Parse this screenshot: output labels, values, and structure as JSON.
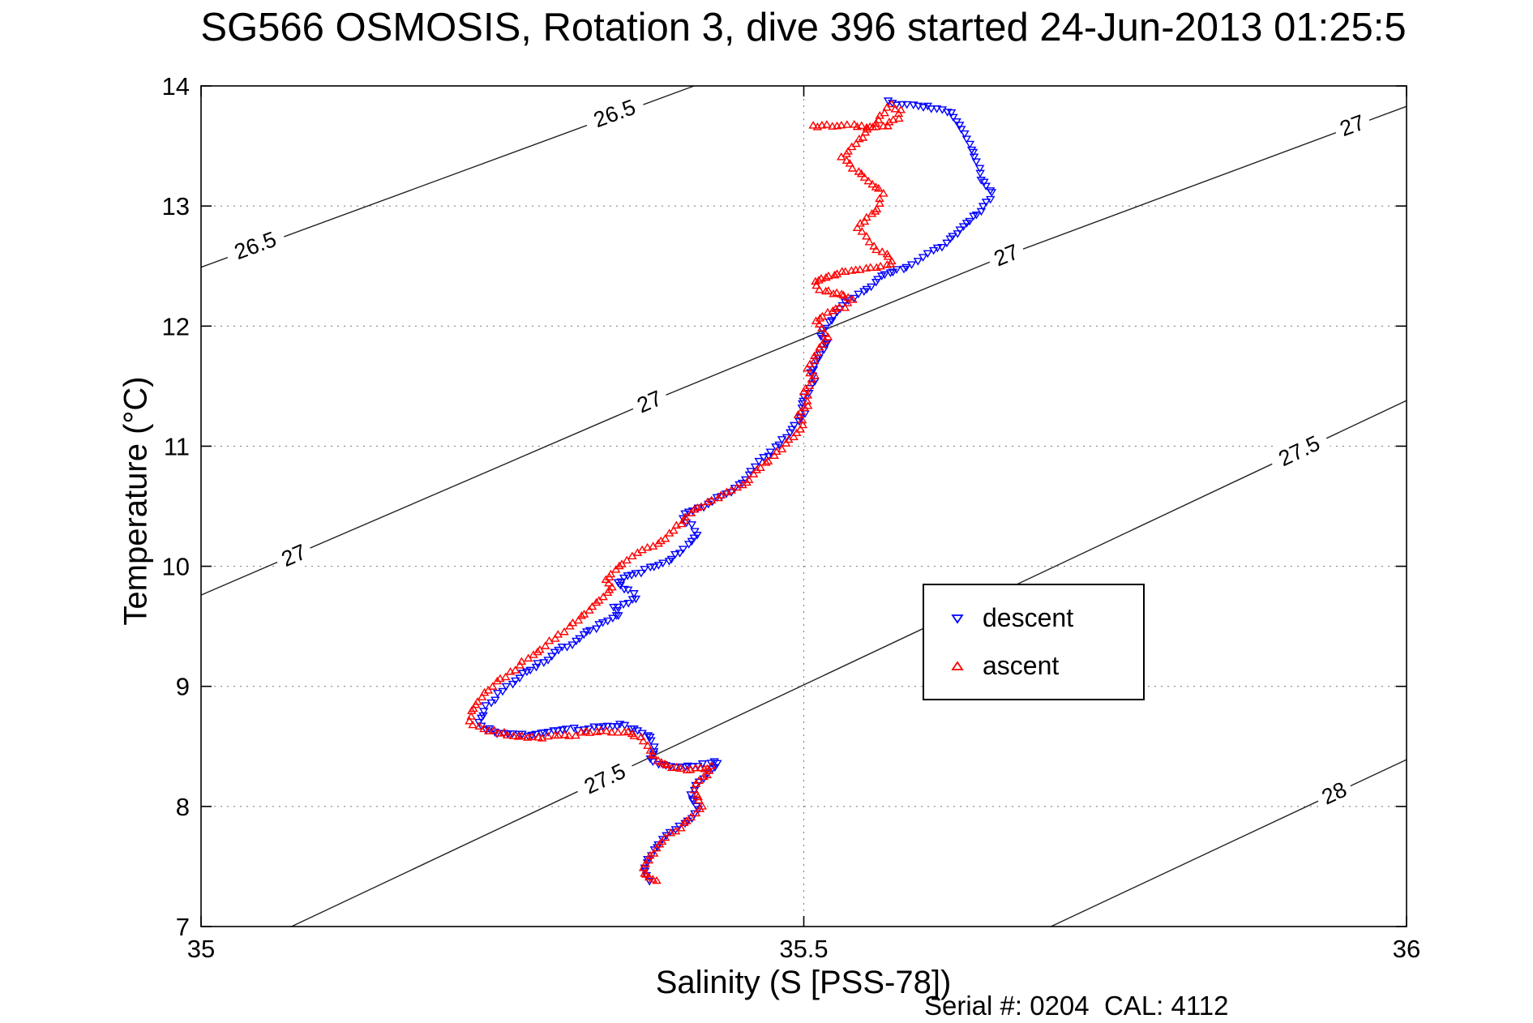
{
  "footer": "Serial #: 0204  CAL: 4112",
  "chart_data": {
    "type": "scatter",
    "title": "SG566 OSMOSIS, Rotation 3, dive 396 started 24-Jun-2013 01:25:5",
    "xlabel": "Salinity (S [PSS-78])",
    "ylabel": "Temperature (°C)",
    "xlim": [
      35,
      36
    ],
    "ylim": [
      7,
      14
    ],
    "xticks": [
      35,
      35.5,
      36
    ],
    "xtick_labels": [
      "35",
      "35.5",
      "36"
    ],
    "yticks": [
      7,
      8,
      9,
      10,
      11,
      12,
      13,
      14
    ],
    "ytick_labels": [
      "7",
      "8",
      "9",
      "10",
      "11",
      "12",
      "13",
      "14"
    ],
    "grid": {
      "x": [
        35.5
      ],
      "y": [
        8,
        9,
        10,
        11,
        12,
        13
      ],
      "style": "dotted"
    },
    "legend_position": "middle-right",
    "contours": [
      {
        "level": "26.5",
        "points": [
          [
            35.0,
            12.49
          ],
          [
            35.409,
            14.0
          ]
        ],
        "labels": [
          {
            "x": 35.045,
            "y": 12.67
          },
          {
            "x": 35.343,
            "y": 13.77
          }
        ]
      },
      {
        "level": "27",
        "points": [
          [
            35.0,
            9.76
          ],
          [
            35.372,
            11.37
          ],
          [
            35.668,
            12.59
          ],
          [
            36.0,
            13.83
          ]
        ],
        "labels": [
          {
            "x": 35.077,
            "y": 10.09
          },
          {
            "x": 35.372,
            "y": 11.37
          },
          {
            "x": 35.668,
            "y": 12.59
          },
          {
            "x": 35.955,
            "y": 13.67
          }
        ]
      },
      {
        "level": "27.5",
        "points": [
          [
            35.075,
            7.0
          ],
          [
            36.0,
            11.38
          ]
        ],
        "labels": [
          {
            "x": 35.335,
            "y": 8.23
          },
          {
            "x": 35.911,
            "y": 10.96
          }
        ]
      },
      {
        "level": "28",
        "points": [
          [
            35.705,
            7.0
          ],
          [
            36.0,
            8.39
          ]
        ],
        "labels": [
          {
            "x": 35.94,
            "y": 8.11
          }
        ]
      }
    ],
    "series": [
      {
        "name": "descent",
        "marker": "triangle-down",
        "color": "#0000FF",
        "points": [
          [
            35.569,
            13.89
          ],
          [
            35.578,
            13.85
          ],
          [
            35.598,
            13.83
          ],
          [
            35.623,
            13.79
          ],
          [
            35.635,
            13.56
          ],
          [
            35.639,
            13.48
          ],
          [
            35.644,
            13.36
          ],
          [
            35.648,
            13.23
          ],
          [
            35.656,
            13.11
          ],
          [
            35.652,
            13.03
          ],
          [
            35.644,
            12.94
          ],
          [
            35.635,
            12.86
          ],
          [
            35.627,
            12.78
          ],
          [
            35.619,
            12.69
          ],
          [
            35.611,
            12.65
          ],
          [
            35.602,
            12.61
          ],
          [
            35.594,
            12.55
          ],
          [
            35.586,
            12.5
          ],
          [
            35.578,
            12.47
          ],
          [
            35.565,
            12.41
          ],
          [
            35.557,
            12.34
          ],
          [
            35.549,
            12.28
          ],
          [
            35.541,
            12.24
          ],
          [
            35.532,
            12.17
          ],
          [
            35.528,
            12.12
          ],
          [
            35.523,
            12.06
          ],
          [
            35.518,
            11.99
          ],
          [
            35.514,
            11.93
          ],
          [
            35.52,
            11.87
          ],
          [
            35.516,
            11.81
          ],
          [
            35.512,
            11.74
          ],
          [
            35.508,
            11.68
          ],
          [
            35.506,
            11.61
          ],
          [
            35.509,
            11.55
          ],
          [
            35.506,
            11.48
          ],
          [
            35.501,
            11.41
          ],
          [
            35.498,
            11.35
          ],
          [
            35.5,
            11.28
          ],
          [
            35.495,
            11.22
          ],
          [
            35.491,
            11.15
          ],
          [
            35.485,
            11.08
          ],
          [
            35.479,
            11.02
          ],
          [
            35.473,
            10.96
          ],
          [
            35.467,
            10.9
          ],
          [
            35.46,
            10.84
          ],
          [
            35.454,
            10.77
          ],
          [
            35.45,
            10.7
          ],
          [
            35.444,
            10.65
          ],
          [
            35.436,
            10.61
          ],
          [
            35.429,
            10.57
          ],
          [
            35.421,
            10.52
          ],
          [
            35.412,
            10.49
          ],
          [
            35.404,
            10.46
          ],
          [
            35.399,
            10.41
          ],
          [
            35.406,
            10.34
          ],
          [
            35.411,
            10.27
          ],
          [
            35.407,
            10.21
          ],
          [
            35.401,
            10.15
          ],
          [
            35.394,
            10.09
          ],
          [
            35.384,
            10.04
          ],
          [
            35.373,
            9.99
          ],
          [
            35.361,
            9.94
          ],
          [
            35.351,
            9.9
          ],
          [
            35.345,
            9.86
          ],
          [
            35.355,
            9.8
          ],
          [
            35.361,
            9.74
          ],
          [
            35.351,
            9.69
          ],
          [
            35.342,
            9.65
          ],
          [
            35.347,
            9.6
          ],
          [
            35.337,
            9.55
          ],
          [
            35.327,
            9.49
          ],
          [
            35.317,
            9.43
          ],
          [
            35.307,
            9.36
          ],
          [
            35.297,
            9.3
          ],
          [
            35.287,
            9.23
          ],
          [
            35.277,
            9.17
          ],
          [
            35.267,
            9.1
          ],
          [
            35.258,
            9.03
          ],
          [
            35.25,
            8.97
          ],
          [
            35.243,
            8.9
          ],
          [
            35.237,
            8.84
          ],
          [
            35.233,
            8.77
          ],
          [
            35.231,
            8.7
          ],
          [
            35.236,
            8.65
          ],
          [
            35.246,
            8.62
          ],
          [
            35.259,
            8.6
          ],
          [
            35.274,
            8.6
          ],
          [
            35.289,
            8.62
          ],
          [
            35.304,
            8.64
          ],
          [
            35.318,
            8.65
          ],
          [
            35.333,
            8.67
          ],
          [
            35.348,
            8.68
          ],
          [
            35.36,
            8.65
          ],
          [
            35.37,
            8.6
          ],
          [
            35.374,
            8.54
          ],
          [
            35.376,
            8.47
          ],
          [
            35.373,
            8.41
          ],
          [
            35.379,
            8.36
          ],
          [
            35.389,
            8.34
          ],
          [
            35.401,
            8.34
          ],
          [
            35.412,
            8.35
          ],
          [
            35.422,
            8.36
          ],
          [
            35.429,
            8.37
          ],
          [
            35.424,
            8.31
          ],
          [
            35.417,
            8.24
          ],
          [
            35.411,
            8.17
          ],
          [
            35.406,
            8.11
          ],
          [
            35.409,
            8.04
          ],
          [
            35.412,
            7.98
          ],
          [
            35.407,
            7.91
          ],
          [
            35.401,
            7.86
          ],
          [
            35.393,
            7.81
          ],
          [
            35.386,
            7.75
          ],
          [
            35.38,
            7.69
          ],
          [
            35.375,
            7.63
          ],
          [
            35.371,
            7.56
          ],
          [
            35.368,
            7.5
          ],
          [
            35.369,
            7.43
          ],
          [
            35.372,
            7.38
          ]
        ]
      },
      {
        "name": "ascent",
        "marker": "triangle-up",
        "color": "#FF0000",
        "points": [
          [
            35.508,
            13.66
          ],
          [
            35.52,
            13.67
          ],
          [
            35.532,
            13.66
          ],
          [
            35.545,
            13.67
          ],
          [
            35.557,
            13.66
          ],
          [
            35.569,
            13.67
          ],
          [
            35.578,
            13.73
          ],
          [
            35.58,
            13.79
          ],
          [
            35.572,
            13.84
          ],
          [
            35.532,
            13.4
          ],
          [
            35.557,
            13.19
          ],
          [
            35.565,
            13.11
          ],
          [
            35.561,
            12.98
          ],
          [
            35.553,
            12.9
          ],
          [
            35.545,
            12.82
          ],
          [
            35.551,
            12.74
          ],
          [
            35.557,
            12.67
          ],
          [
            35.565,
            12.61
          ],
          [
            35.574,
            12.55
          ],
          [
            35.569,
            12.5
          ],
          [
            35.539,
            12.47
          ],
          [
            35.528,
            12.44
          ],
          [
            35.518,
            12.41
          ],
          [
            35.509,
            12.36
          ],
          [
            35.514,
            12.31
          ],
          [
            35.524,
            12.27
          ],
          [
            35.534,
            12.25
          ],
          [
            35.541,
            12.21
          ],
          [
            35.534,
            12.16
          ],
          [
            35.524,
            12.12
          ],
          [
            35.516,
            12.09
          ],
          [
            35.511,
            12.03
          ],
          [
            35.516,
            11.98
          ],
          [
            35.521,
            11.91
          ],
          [
            35.516,
            11.84
          ],
          [
            35.511,
            11.78
          ],
          [
            35.508,
            11.71
          ],
          [
            35.504,
            11.65
          ],
          [
            35.508,
            11.58
          ],
          [
            35.504,
            11.51
          ],
          [
            35.501,
            11.45
          ],
          [
            35.504,
            11.38
          ],
          [
            35.501,
            11.31
          ],
          [
            35.496,
            11.25
          ],
          [
            35.5,
            11.18
          ],
          [
            35.495,
            11.12
          ],
          [
            35.488,
            11.05
          ],
          [
            35.481,
            10.98
          ],
          [
            35.475,
            10.92
          ],
          [
            35.468,
            10.85
          ],
          [
            35.462,
            10.79
          ],
          [
            35.455,
            10.72
          ],
          [
            35.449,
            10.67
          ],
          [
            35.44,
            10.63
          ],
          [
            35.432,
            10.59
          ],
          [
            35.424,
            10.55
          ],
          [
            35.416,
            10.5
          ],
          [
            35.409,
            10.46
          ],
          [
            35.402,
            10.41
          ],
          [
            35.398,
            10.36
          ],
          [
            35.393,
            10.3
          ],
          [
            35.386,
            10.24
          ],
          [
            35.379,
            10.19
          ],
          [
            35.37,
            10.15
          ],
          [
            35.362,
            10.1
          ],
          [
            35.354,
            10.05
          ],
          [
            35.346,
            10.0
          ],
          [
            35.34,
            9.94
          ],
          [
            35.335,
            9.88
          ],
          [
            35.342,
            9.83
          ],
          [
            35.337,
            9.78
          ],
          [
            35.331,
            9.72
          ],
          [
            35.325,
            9.66
          ],
          [
            35.318,
            9.6
          ],
          [
            35.312,
            9.55
          ],
          [
            35.305,
            9.49
          ],
          [
            35.297,
            9.43
          ],
          [
            35.29,
            9.37
          ],
          [
            35.282,
            9.31
          ],
          [
            35.275,
            9.26
          ],
          [
            35.267,
            9.2
          ],
          [
            35.26,
            9.14
          ],
          [
            35.253,
            9.08
          ],
          [
            35.245,
            9.03
          ],
          [
            35.239,
            8.97
          ],
          [
            35.233,
            8.91
          ],
          [
            35.228,
            8.85
          ],
          [
            35.225,
            8.79
          ],
          [
            35.223,
            8.72
          ],
          [
            35.226,
            8.67
          ],
          [
            35.235,
            8.64
          ],
          [
            35.258,
            8.59
          ],
          [
            35.271,
            8.57
          ],
          [
            35.284,
            8.57
          ],
          [
            35.297,
            8.59
          ],
          [
            35.31,
            8.6
          ],
          [
            35.323,
            8.62
          ],
          [
            35.337,
            8.63
          ],
          [
            35.35,
            8.62
          ],
          [
            35.36,
            8.59
          ],
          [
            35.368,
            8.54
          ],
          [
            35.373,
            8.47
          ],
          [
            35.376,
            8.41
          ],
          [
            35.381,
            8.36
          ],
          [
            35.391,
            8.32
          ],
          [
            35.402,
            8.31
          ],
          [
            35.414,
            8.31
          ],
          [
            35.424,
            8.33
          ],
          [
            35.421,
            8.27
          ],
          [
            35.414,
            8.21
          ],
          [
            35.409,
            8.14
          ],
          [
            35.412,
            8.07
          ],
          [
            35.416,
            8.01
          ],
          [
            35.411,
            7.94
          ],
          [
            35.404,
            7.88
          ],
          [
            35.397,
            7.83
          ],
          [
            35.389,
            7.77
          ],
          [
            35.383,
            7.71
          ],
          [
            35.377,
            7.65
          ],
          [
            35.373,
            7.58
          ],
          [
            35.369,
            7.51
          ],
          [
            35.367,
            7.45
          ],
          [
            35.372,
            7.4
          ],
          [
            35.378,
            7.38
          ]
        ]
      }
    ]
  }
}
